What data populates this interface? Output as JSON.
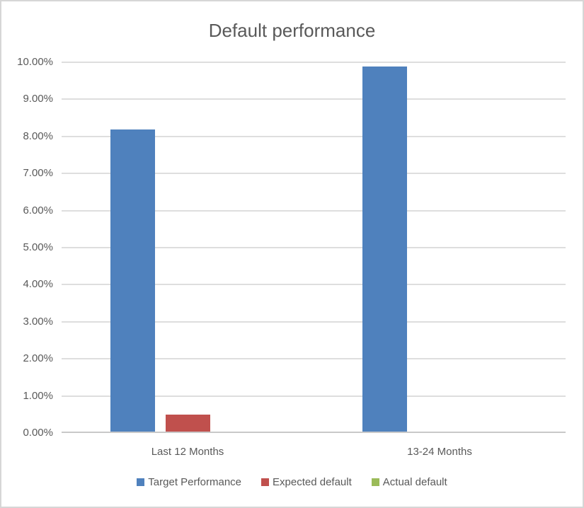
{
  "chart_data": {
    "type": "bar",
    "title": "Default performance",
    "categories": [
      "Last 12 Months",
      "13-24 Months"
    ],
    "series": [
      {
        "name": "Target Performance",
        "color": "#4F81BD",
        "values": [
          8.15,
          9.85
        ]
      },
      {
        "name": "Expected default",
        "color": "#C0504D",
        "values": [
          0.45,
          0
        ]
      },
      {
        "name": "Actual default",
        "color": "#9BBB59",
        "values": [
          0,
          0
        ]
      }
    ],
    "y_axis": {
      "min": 0,
      "max": 10,
      "step": 1,
      "unit": "percent",
      "tick_labels_top_to_bottom": [
        "10.00%",
        "9.00%",
        "8.00%",
        "7.00%",
        "6.00%",
        "5.00%",
        "4.00%",
        "3.00%",
        "2.00%",
        "1.00%",
        "0.00%"
      ]
    },
    "grid": true,
    "legend_position": "bottom",
    "styles": {
      "gridline_color": "#DEDEDE",
      "axis_line_color": "#C9C9C9",
      "text_color": "#595959",
      "background": "#FFFFFF",
      "frame_border_color": "#D6D6D6"
    }
  }
}
